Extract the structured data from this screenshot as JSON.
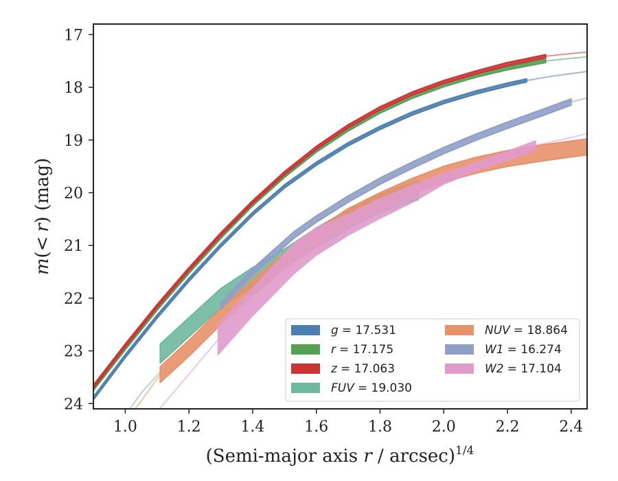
{
  "chart_data": {
    "type": "line",
    "xlabel_prefix": "(Semi-major axis ",
    "xlabel_var": "r",
    "xlabel_mid": " / arcsec)",
    "xlabel_sup": "1/4",
    "ylabel_m": "m",
    "ylabel_paren": "(",
    "ylabel_lt": "<",
    "ylabel_r": "r",
    "ylabel_rest": ") (mag)",
    "xlim": [
      0.9,
      2.45
    ],
    "ylim": [
      24.1,
      16.8
    ],
    "y_inverted": true,
    "xticks": [
      "1.0",
      "1.2",
      "1.4",
      "1.6",
      "1.8",
      "2.0",
      "2.2",
      "2.4"
    ],
    "yticks": [
      "17",
      "18",
      "19",
      "20",
      "21",
      "22",
      "23",
      "24"
    ],
    "legend_position": "lower-right",
    "series": [
      {
        "name": "g",
        "label_val": "= 17.531",
        "color": "#4c7fae",
        "solid": [
          [
            0.9,
            23.9
          ],
          [
            1.0,
            23.1
          ],
          [
            1.1,
            22.35
          ],
          [
            1.2,
            21.65
          ],
          [
            1.3,
            21.0
          ],
          [
            1.4,
            20.4
          ],
          [
            1.5,
            19.88
          ],
          [
            1.6,
            19.45
          ],
          [
            1.7,
            19.08
          ],
          [
            1.8,
            18.77
          ],
          [
            1.9,
            18.5
          ],
          [
            2.0,
            18.28
          ],
          [
            2.1,
            18.1
          ],
          [
            2.2,
            17.95
          ],
          [
            2.26,
            17.87
          ]
        ],
        "faint": [
          [
            2.26,
            17.87
          ],
          [
            2.35,
            17.78
          ],
          [
            2.45,
            17.7
          ]
        ],
        "width": 0.06
      },
      {
        "name": "r",
        "label_val": "= 17.175",
        "color": "#55a055",
        "solid": [
          [
            0.9,
            23.72
          ],
          [
            1.0,
            22.95
          ],
          [
            1.1,
            22.2
          ],
          [
            1.2,
            21.5
          ],
          [
            1.3,
            20.84
          ],
          [
            1.4,
            20.22
          ],
          [
            1.5,
            19.68
          ],
          [
            1.6,
            19.2
          ],
          [
            1.7,
            18.8
          ],
          [
            1.8,
            18.46
          ],
          [
            1.9,
            18.18
          ],
          [
            2.0,
            17.96
          ],
          [
            2.1,
            17.78
          ],
          [
            2.2,
            17.64
          ],
          [
            2.32,
            17.5
          ]
        ],
        "faint": [
          [
            2.32,
            17.5
          ],
          [
            2.4,
            17.45
          ],
          [
            2.45,
            17.42
          ]
        ],
        "width": 0.06
      },
      {
        "name": "z",
        "label_val": "= 17.063",
        "color": "#cc3333",
        "solid": [
          [
            0.9,
            23.68
          ],
          [
            1.0,
            22.9
          ],
          [
            1.1,
            22.15
          ],
          [
            1.2,
            21.45
          ],
          [
            1.3,
            20.79
          ],
          [
            1.4,
            20.18
          ],
          [
            1.5,
            19.63
          ],
          [
            1.6,
            19.15
          ],
          [
            1.7,
            18.74
          ],
          [
            1.8,
            18.4
          ],
          [
            1.9,
            18.12
          ],
          [
            2.0,
            17.9
          ],
          [
            2.1,
            17.72
          ],
          [
            2.2,
            17.56
          ],
          [
            2.32,
            17.41
          ]
        ],
        "faint": [
          [
            2.32,
            17.41
          ],
          [
            2.4,
            17.36
          ],
          [
            2.45,
            17.33
          ]
        ],
        "width": 0.06
      },
      {
        "name": "FUV",
        "label_val": "= 19.030",
        "color": "#6fb8a0",
        "solid": [
          [
            1.11,
            23.05
          ],
          [
            1.2,
            22.55
          ],
          [
            1.3,
            22.0
          ],
          [
            1.4,
            21.6
          ],
          [
            1.5,
            21.25
          ],
          [
            1.6,
            20.85
          ],
          [
            1.7,
            20.5
          ],
          [
            1.8,
            20.2
          ],
          [
            1.92,
            19.95
          ]
        ],
        "faint": [
          [
            0.98,
            24.4
          ],
          [
            1.05,
            23.8
          ],
          [
            1.11,
            23.4
          ]
        ],
        "faint2": [
          [
            1.92,
            19.95
          ],
          [
            2.0,
            19.75
          ],
          [
            2.2,
            19.5
          ],
          [
            2.45,
            19.28
          ]
        ],
        "width": 0.36
      },
      {
        "name": "NUV",
        "label_val": "= 18.864",
        "color": "#e8916a",
        "solid": [
          [
            1.11,
            23.45
          ],
          [
            1.2,
            22.95
          ],
          [
            1.3,
            22.35
          ],
          [
            1.4,
            21.8
          ],
          [
            1.5,
            21.3
          ],
          [
            1.6,
            20.85
          ],
          [
            1.7,
            20.45
          ],
          [
            1.8,
            20.15
          ],
          [
            1.9,
            19.88
          ],
          [
            2.0,
            19.65
          ],
          [
            2.1,
            19.48
          ],
          [
            2.2,
            19.35
          ],
          [
            2.3,
            19.25
          ],
          [
            2.45,
            19.13
          ]
        ],
        "faint": [
          [
            0.98,
            24.5
          ],
          [
            1.05,
            23.95
          ],
          [
            1.11,
            23.45
          ]
        ],
        "width": 0.3
      },
      {
        "name": "W1",
        "label_val": "= 16.274",
        "color": "#8f9fc6",
        "solid": [
          [
            1.3,
            22.15
          ],
          [
            1.4,
            21.5
          ],
          [
            1.53,
            20.8
          ],
          [
            1.6,
            20.5
          ],
          [
            1.7,
            20.12
          ],
          [
            1.8,
            19.78
          ],
          [
            1.9,
            19.48
          ],
          [
            2.0,
            19.2
          ],
          [
            2.1,
            18.95
          ],
          [
            2.2,
            18.72
          ],
          [
            2.3,
            18.5
          ],
          [
            2.4,
            18.28
          ]
        ],
        "faint": [
          [
            2.4,
            18.28
          ],
          [
            2.45,
            18.2
          ]
        ],
        "width": 0.12
      },
      {
        "name": "W2",
        "label_val": "= 17.104",
        "color": "#e09bcb",
        "band_lo": [
          [
            1.29,
            23.1
          ],
          [
            1.4,
            22.35
          ],
          [
            1.53,
            21.55
          ],
          [
            1.6,
            21.2
          ],
          [
            1.7,
            20.82
          ],
          [
            1.8,
            20.5
          ],
          [
            1.9,
            20.2
          ],
          [
            2.0,
            19.85
          ],
          [
            2.1,
            19.6
          ],
          [
            2.2,
            19.4
          ],
          [
            2.29,
            19.2
          ]
        ],
        "band_hi": [
          [
            1.29,
            22.5
          ],
          [
            1.4,
            21.8
          ],
          [
            1.53,
            20.95
          ],
          [
            1.6,
            20.65
          ],
          [
            1.7,
            20.4
          ],
          [
            1.8,
            20.1
          ],
          [
            1.9,
            19.85
          ],
          [
            2.0,
            19.62
          ],
          [
            2.1,
            19.42
          ],
          [
            2.2,
            19.2
          ],
          [
            2.29,
            19.0
          ]
        ],
        "faint": [
          [
            1.05,
            24.5
          ],
          [
            1.15,
            23.8
          ],
          [
            1.29,
            22.8
          ]
        ],
        "faint2": [
          [
            2.29,
            19.1
          ],
          [
            2.38,
            18.98
          ],
          [
            2.45,
            18.88
          ]
        ]
      }
    ]
  }
}
